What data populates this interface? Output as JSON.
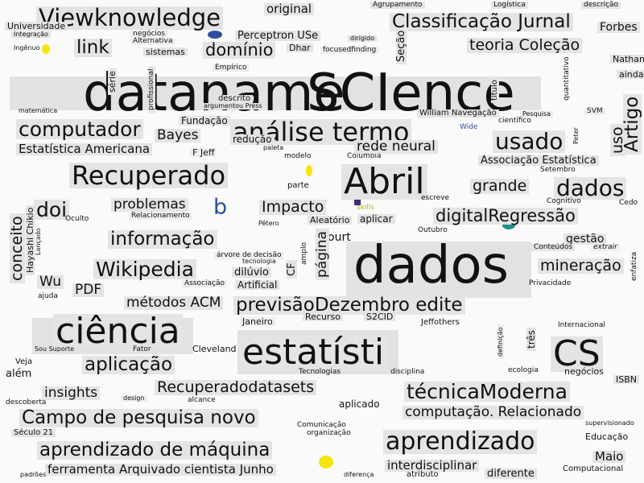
{
  "words": [
    {
      "text": "Viewknowledge",
      "size": 29
    },
    {
      "text": "original",
      "size": 15
    },
    {
      "text": "Agrupamento",
      "size": 9
    },
    {
      "text": "Logística",
      "size": 9
    },
    {
      "text": "descrição",
      "size": 9
    },
    {
      "text": "Universidade",
      "size": 11
    },
    {
      "text": "Integração",
      "size": 8
    },
    {
      "text": "negócios",
      "size": 9
    },
    {
      "text": "Perceptron USe",
      "size": 13
    },
    {
      "text": "dirigido",
      "size": 8
    },
    {
      "text": "Classificação Jurnal",
      "size": 23
    },
    {
      "text": "Forbes",
      "size": 14
    },
    {
      "text": "link",
      "size": 23
    },
    {
      "text": "Alternativa",
      "size": 9
    },
    {
      "text": "domínio",
      "size": 21
    },
    {
      "text": "Dhar",
      "size": 11
    },
    {
      "text": "focusedfinding",
      "size": 9
    },
    {
      "text": "teoria Coleção",
      "size": 19
    },
    {
      "text": "Ingênuo",
      "size": 8
    },
    {
      "text": "sistemas",
      "size": 11
    },
    {
      "text": "Seção",
      "size": 13
    },
    {
      "text": "Nathan",
      "size": 11
    },
    {
      "text": "ainda",
      "size": 11
    },
    {
      "text": "Empírico",
      "size": 9
    },
    {
      "text": "dataname",
      "size": 64
    },
    {
      "text": "SCIence",
      "size": 64
    },
    {
      "text": "série",
      "size": 11
    },
    {
      "text": "profissional",
      "size": 9
    },
    {
      "text": "descrito",
      "size": 10
    },
    {
      "text": "argumentou Press",
      "size": 8
    },
    {
      "text": "título",
      "size": 10
    },
    {
      "text": "quantitativo",
      "size": 9
    },
    {
      "text": "matemática",
      "size": 8
    },
    {
      "text": "computador",
      "size": 25
    },
    {
      "text": "Fundação",
      "size": 12
    },
    {
      "text": "análise termo",
      "size": 32
    },
    {
      "text": "William Navegação",
      "size": 10
    },
    {
      "text": "Pesquisa",
      "size": 8
    },
    {
      "text": "SVM",
      "size": 9
    },
    {
      "text": "Wide",
      "size": 9
    },
    {
      "text": "científico",
      "size": 9
    },
    {
      "text": "Bayes",
      "size": 17
    },
    {
      "text": "redução",
      "size": 12
    },
    {
      "text": "paleta",
      "size": 8
    },
    {
      "text": "usado",
      "size": 28
    },
    {
      "text": "Peter",
      "size": 8
    },
    {
      "text": "uso",
      "size": 19
    },
    {
      "text": "Artigo",
      "size": 23
    },
    {
      "text": "Estatística Americana",
      "size": 15
    },
    {
      "text": "F Jeff",
      "size": 11
    },
    {
      "text": "modelo",
      "size": 9
    },
    {
      "text": "Columbia",
      "size": 9
    },
    {
      "text": "rede neural",
      "size": 17
    },
    {
      "text": "Associação Estatística",
      "size": 13
    },
    {
      "text": "Setembro",
      "size": 9
    },
    {
      "text": "Recuperado",
      "size": 32
    },
    {
      "text": "parte",
      "size": 10
    },
    {
      "text": "Abril",
      "size": 44
    },
    {
      "text": "grande",
      "size": 19
    },
    {
      "text": "dados",
      "size": 28
    },
    {
      "text": "escreve",
      "size": 9
    },
    {
      "text": "Cognitivo",
      "size": 9
    },
    {
      "text": "Cedo",
      "size": 9
    },
    {
      "text": "doi",
      "size": 25
    },
    {
      "text": "problemas",
      "size": 17
    },
    {
      "text": "b",
      "size": 27
    },
    {
      "text": "Impacto",
      "size": 19
    },
    {
      "text": "skills",
      "size": 9
    },
    {
      "text": "Relacionamento",
      "size": 9
    },
    {
      "text": "aplicar",
      "size": 12
    },
    {
      "text": "Oculto",
      "size": 9
    },
    {
      "text": "Aleatório",
      "size": 11
    },
    {
      "text": "Pêtero",
      "size": 8
    },
    {
      "text": "digitalRegressão",
      "size": 21
    },
    {
      "text": "Outubro",
      "size": 9
    },
    {
      "text": "gestão",
      "size": 14
    },
    {
      "text": "conceito",
      "size": 19
    },
    {
      "text": "Hayashi Chikio",
      "size": 11
    },
    {
      "text": "Lançado",
      "size": 8
    },
    {
      "text": "informação",
      "size": 23
    },
    {
      "text": "árvore de decisão",
      "size": 9
    },
    {
      "text": "ourt",
      "size": 14
    },
    {
      "text": "página",
      "size": 17
    },
    {
      "text": "dados",
      "size": 64
    },
    {
      "text": "Conteúdos",
      "size": 9
    },
    {
      "text": "extrair",
      "size": 9
    },
    {
      "text": "enfatiza",
      "size": 9
    },
    {
      "text": "Wikipedia",
      "size": 25
    },
    {
      "text": "tecnologia",
      "size": 8
    },
    {
      "text": "dilúvio",
      "size": 13
    },
    {
      "text": "CF",
      "size": 13
    },
    {
      "text": "amplo",
      "size": 9
    },
    {
      "text": "mineração",
      "size": 19
    },
    {
      "text": "Wu",
      "size": 17
    },
    {
      "text": "PDF",
      "size": 17
    },
    {
      "text": "Associação",
      "size": 9
    },
    {
      "text": "Artificial",
      "size": 12
    },
    {
      "text": "Privacidade",
      "size": 9
    },
    {
      "text": "ajuda",
      "size": 9
    },
    {
      "text": "métodos ACM",
      "size": 17
    },
    {
      "text": "previsãoDezembro edite",
      "size": 23
    },
    {
      "text": "ciência",
      "size": 44
    },
    {
      "text": "Janeiro",
      "size": 11
    },
    {
      "text": "Recurso",
      "size": 11
    },
    {
      "text": "S2CID",
      "size": 11
    },
    {
      "text": "Jeffothers",
      "size": 10
    },
    {
      "text": "Internacional",
      "size": 9
    },
    {
      "text": "estatísti",
      "size": 44
    },
    {
      "text": "definição",
      "size": 8
    },
    {
      "text": "três",
      "size": 12
    },
    {
      "text": "CS",
      "size": 44
    },
    {
      "text": "Fator",
      "size": 9
    },
    {
      "text": "Cleveland",
      "size": 11
    },
    {
      "text": "Sou Suporte",
      "size": 8
    },
    {
      "text": "aplicação",
      "size": 23
    },
    {
      "text": "Veja",
      "size": 10
    },
    {
      "text": "além",
      "size": 13
    },
    {
      "text": "Tecnologias",
      "size": 9
    },
    {
      "text": "disciplina",
      "size": 9
    },
    {
      "text": "ecologia",
      "size": 9
    },
    {
      "text": "negócios",
      "size": 11
    },
    {
      "text": "ISBN",
      "size": 11
    },
    {
      "text": "insights",
      "size": 17
    },
    {
      "text": "Recuperadodatasets",
      "size": 19
    },
    {
      "text": "técnicaModerna",
      "size": 25
    },
    {
      "text": "descoberta",
      "size": 9
    },
    {
      "text": "design",
      "size": 8
    },
    {
      "text": "alcance",
      "size": 9
    },
    {
      "text": "aplicado",
      "size": 12
    },
    {
      "text": "Campo de pesquisa novo",
      "size": 23
    },
    {
      "text": "computação. Relacionado",
      "size": 17
    },
    {
      "text": "supervisionado",
      "size": 8
    },
    {
      "text": "Comunicação",
      "size": 9
    },
    {
      "text": "organização",
      "size": 9
    },
    {
      "text": "Século 21",
      "size": 10
    },
    {
      "text": "aprendizado",
      "size": 30
    },
    {
      "text": "Educação",
      "size": 11
    },
    {
      "text": "aprendizado de máquina",
      "size": 23
    },
    {
      "text": "Maio",
      "size": 15
    },
    {
      "text": "interdisciplinar",
      "size": 15
    },
    {
      "text": "ferramenta Arquivado cientista Junho",
      "size": 15
    },
    {
      "text": "Computacional",
      "size": 10
    },
    {
      "text": "padrões",
      "size": 8
    },
    {
      "text": "diferença",
      "size": 8
    },
    {
      "text": "atributo",
      "size": 10
    },
    {
      "text": "diferente",
      "size": 13
    }
  ],
  "colors": {
    "background": "#fafafa",
    "text": "#111111",
    "box": "#e2e2e2",
    "accent_yellow": "#f5e60a",
    "accent_purple": "#3f2a86",
    "accent_teal": "#1f8f8a",
    "accent_blue": "#2f4d9b"
  }
}
